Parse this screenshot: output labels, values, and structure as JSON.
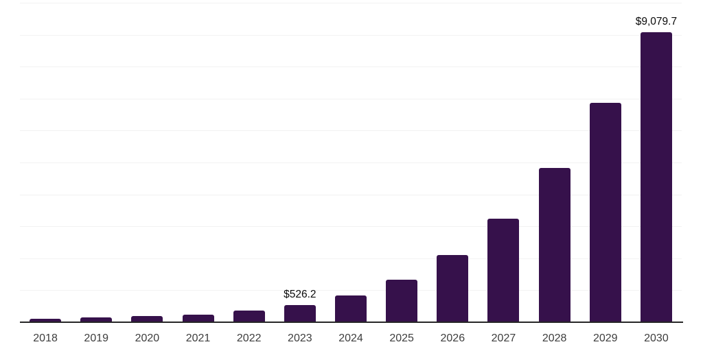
{
  "chart_data": {
    "type": "bar",
    "title": "",
    "xlabel": "",
    "ylabel": "",
    "categories": [
      "2018",
      "2019",
      "2020",
      "2021",
      "2022",
      "2023",
      "2024",
      "2025",
      "2026",
      "2027",
      "2028",
      "2029",
      "2030"
    ],
    "values": [
      105,
      140,
      185,
      240,
      355,
      526.2,
      835,
      1335,
      2105,
      3230,
      4820,
      6870,
      9079.7
    ],
    "annotations": [
      {
        "category": "2023",
        "text": "$526.2"
      },
      {
        "category": "2030",
        "text": "$9,079.7"
      }
    ],
    "ylim": [
      0,
      10000
    ],
    "gridline_step": 1000,
    "grid": "horizontal",
    "legend": "none",
    "y_tick_labels_visible": false,
    "colors": {
      "bar": "#36114b",
      "axis_line": "#262626",
      "gridline": "#f2f2f2",
      "x_label_text": "#3d3d3d",
      "data_label_text": "#0a0a0a",
      "background": "#ffffff"
    }
  }
}
